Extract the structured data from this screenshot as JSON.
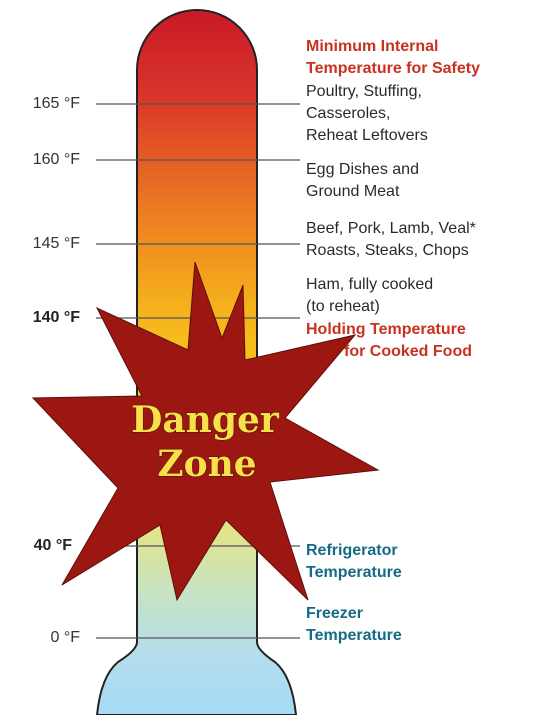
{
  "ticks": [
    {
      "label": "165 °F",
      "bold": false
    },
    {
      "label": "160 °F",
      "bold": false
    },
    {
      "label": "145 °F",
      "bold": false
    },
    {
      "label": "140 °F",
      "bold": true
    },
    {
      "label": "40 °F",
      "bold": true
    },
    {
      "label": "0 °F",
      "bold": false
    }
  ],
  "notes": {
    "safety_heading": [
      "Minimum Internal",
      "Temperature for Safety"
    ],
    "poultry": [
      "Poultry, Stuffing,",
      "Casseroles,",
      "Reheat Leftovers"
    ],
    "eggs": [
      "Egg Dishes and",
      "Ground Meat"
    ],
    "beef": [
      "Beef, Pork, Lamb, Veal*",
      "Roasts, Steaks, Chops"
    ],
    "ham": [
      "Ham, fully cooked",
      "(to reheat)"
    ],
    "holding": [
      "Holding Temperature",
      "for Cooked Food"
    ],
    "refrigerator": [
      "Refrigerator",
      "Temperature"
    ],
    "freezer": [
      "Freezer",
      "Temperature"
    ]
  },
  "danger_zone": {
    "line1": "Danger",
    "line2": "Zone"
  },
  "colors": {
    "mercury_top": "#d0202a",
    "mercury_mid": "#f6c21a",
    "mercury_bottom": "#a8dcf5",
    "starburst": "#9c1712",
    "starburst_text": "#f7e04a",
    "heading_red": "#c8321e",
    "heading_blue": "#156a86"
  }
}
